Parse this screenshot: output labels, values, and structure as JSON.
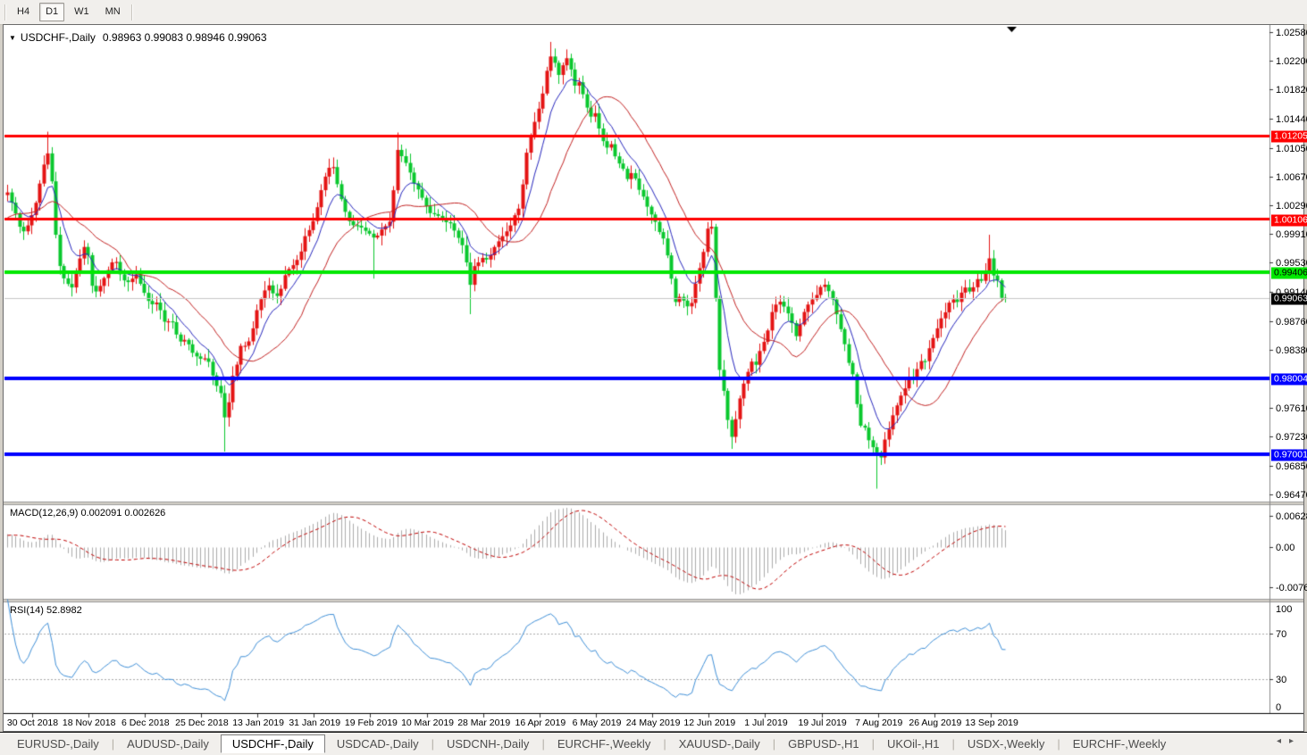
{
  "window": {
    "toolbar": {
      "timeframes": [
        {
          "label": "H4",
          "active": false
        },
        {
          "label": "D1",
          "active": true
        },
        {
          "label": "W1",
          "active": false
        },
        {
          "label": "MN",
          "active": false
        }
      ]
    },
    "title": {
      "dropdown_icon": "▼",
      "symbol": "USDCHF-,Daily",
      "ohlc": "0.98963 0.99083 0.98946 0.99063"
    },
    "tabs": {
      "items": [
        {
          "label": "EURUSD-,Daily",
          "active": false
        },
        {
          "label": "AUDUSD-,Daily",
          "active": false
        },
        {
          "label": "USDCHF-,Daily",
          "active": true
        },
        {
          "label": "USDCAD-,Daily",
          "active": false
        },
        {
          "label": "USDCNH-,Daily",
          "active": false
        },
        {
          "label": "EURCHF-,Weekly",
          "active": false
        },
        {
          "label": "XAUUSD-,Daily",
          "active": false
        },
        {
          "label": "GBPUSD-,H1",
          "active": false
        },
        {
          "label": "UKOil-,H1",
          "active": false
        },
        {
          "label": "USDX-,Weekly",
          "active": false
        },
        {
          "label": "EURCHF-,Weekly",
          "active": false
        }
      ],
      "scroll_left": "◂",
      "scroll_right": "▸"
    }
  },
  "chart_data": {
    "type": "candlestick",
    "symbol": "USDCHF-",
    "timeframe": "Daily",
    "quote": {
      "open": "0.98963",
      "high": "0.99083",
      "low": "0.98946",
      "close": "0.99063"
    },
    "colors": {
      "bull": "#E41414",
      "bear": "#0AC82E",
      "ma_fast": "#2727BE",
      "ma_slow": "#C32222",
      "macd_hist": "#ABABAB",
      "macd_signal": "#C00000",
      "rsi_line": "#4090D8",
      "current_price_line": "#C8C8C8"
    },
    "price_axis": {
      "ticks": [
        "1.02580",
        "1.02200",
        "1.01820",
        "1.01440",
        "1.01050",
        "1.00670",
        "1.00290",
        "0.99910",
        "0.99530",
        "0.99140",
        "0.98760",
        "0.98380",
        "0.97610",
        "0.97230",
        "0.96850",
        "0.96470"
      ],
      "special_labels": [
        {
          "text": "1.01205",
          "bg": "#FF0000",
          "fg": "#FFFFFF"
        },
        {
          "text": "1.00106",
          "bg": "#FF0000",
          "fg": "#FFFFFF"
        },
        {
          "text": "0.99406",
          "bg": "#00E800",
          "fg": "#000000"
        },
        {
          "text": "0.99063",
          "bg": "#000000",
          "fg": "#FFFFFF"
        },
        {
          "text": "0.98004",
          "bg": "#0000FF",
          "fg": "#FFFFFF"
        },
        {
          "text": "0.97001",
          "bg": "#0000FF",
          "fg": "#FFFFFF"
        }
      ]
    },
    "levels": [
      {
        "price": 1.01205,
        "color": "#FF0000",
        "width": 3
      },
      {
        "price": 1.00106,
        "color": "#FF0000",
        "width": 3
      },
      {
        "price": 0.99406,
        "color": "#00E800",
        "width": 4
      },
      {
        "price": 0.98004,
        "color": "#0000FF",
        "width": 4
      },
      {
        "price": 0.97001,
        "color": "#0000FF",
        "width": 4
      },
      {
        "price": 0.99063,
        "color": "#C8C8C8",
        "width": 1,
        "role": "current-price"
      }
    ],
    "x_axis": {
      "labels": [
        "30 Oct 2018",
        "18 Nov 2018",
        "6 Dec 2018",
        "25 Dec 2018",
        "13 Jan 2019",
        "31 Jan 2019",
        "19 Feb 2019",
        "10 Mar 2019",
        "28 Mar 2019",
        "16 Apr 2019",
        "6 May 2019",
        "24 May 2019",
        "12 Jun 2019",
        "1 Jul 2019",
        "19 Jul 2019",
        "7 Aug 2019",
        "26 Aug 2019",
        "13 Sep 2019"
      ]
    },
    "series": {
      "candles": 249,
      "warmup": {
        "bars": 28,
        "start": 0.9948
      },
      "anchors": [
        [
          8,
          1.0046
        ],
        [
          16,
          1.0022
        ],
        [
          24,
          0.9991
        ],
        [
          32,
          1.0005
        ],
        [
          40,
          1.0034
        ],
        [
          48,
          1.0081
        ],
        [
          53,
          1.0098
        ],
        [
          58,
          1.0057
        ],
        [
          64,
          0.9958
        ],
        [
          72,
          0.9929
        ],
        [
          80,
          0.992
        ],
        [
          88,
          0.9955
        ],
        [
          96,
          0.9982
        ],
        [
          104,
          0.991
        ],
        [
          112,
          0.9923
        ],
        [
          120,
          0.9942
        ],
        [
          128,
          0.996
        ],
        [
          136,
          0.9931
        ],
        [
          144,
          0.9927
        ],
        [
          152,
          0.9938
        ],
        [
          160,
          0.9916
        ],
        [
          168,
          0.9897
        ],
        [
          176,
          0.9901
        ],
        [
          184,
          0.9874
        ],
        [
          192,
          0.9877
        ],
        [
          200,
          0.9848
        ],
        [
          208,
          0.9852
        ],
        [
          216,
          0.9832
        ],
        [
          224,
          0.9826
        ],
        [
          232,
          0.9827
        ],
        [
          240,
          0.9795
        ],
        [
          248,
          0.9778
        ],
        [
          253,
          0.9733
        ],
        [
          258,
          0.9797
        ],
        [
          264,
          0.9814
        ],
        [
          270,
          0.9847
        ],
        [
          276,
          0.9841
        ],
        [
          282,
          0.9862
        ],
        [
          288,
          0.9894
        ],
        [
          294,
          0.9911
        ],
        [
          300,
          0.9925
        ],
        [
          306,
          0.9911
        ],
        [
          312,
          0.9908
        ],
        [
          318,
          0.9935
        ],
        [
          324,
          0.9946
        ],
        [
          330,
          0.9952
        ],
        [
          336,
          0.9964
        ],
        [
          342,
          0.9991
        ],
        [
          348,
          0.9999
        ],
        [
          354,
          1.0022
        ],
        [
          360,
          1.0052
        ],
        [
          366,
          1.0075
        ],
        [
          372,
          1.0084
        ],
        [
          378,
          1.0054
        ],
        [
          384,
          1.0028
        ],
        [
          390,
          1.0009
        ],
        [
          396,
          1.0002
        ],
        [
          402,
          1.0002
        ],
        [
          408,
          0.9996
        ],
        [
          414,
          0.9991
        ],
        [
          420,
          0.9984
        ],
        [
          426,
          0.9996
        ],
        [
          432,
          1.0002
        ],
        [
          438,
          1.001
        ],
        [
          444,
          1.0104
        ],
        [
          450,
          1.0093
        ],
        [
          456,
          1.0081
        ],
        [
          462,
          1.006
        ],
        [
          468,
          1.0049
        ],
        [
          474,
          1.0034
        ],
        [
          480,
          1.0019
        ],
        [
          486,
          1.0017
        ],
        [
          492,
          1.0014
        ],
        [
          498,
          1.0007
        ],
        [
          504,
          1.0005
        ],
        [
          510,
          0.9991
        ],
        [
          516,
          0.9979
        ],
        [
          521,
          0.9966
        ],
        [
          524,
          0.99
        ],
        [
          528,
          0.9946
        ],
        [
          534,
          0.9952
        ],
        [
          540,
          0.996
        ],
        [
          546,
          0.9956
        ],
        [
          552,
          0.9972
        ],
        [
          558,
          0.9982
        ],
        [
          564,
          0.9991
        ],
        [
          570,
          0.9999
        ],
        [
          576,
          1.0017
        ],
        [
          582,
          1.0028
        ],
        [
          588,
          1.0093
        ],
        [
          594,
          1.0122
        ],
        [
          600,
          1.0147
        ],
        [
          606,
          1.0169
        ],
        [
          612,
          1.0209
        ],
        [
          618,
          1.0233
        ],
        [
          624,
          1.0198
        ],
        [
          630,
          1.0215
        ],
        [
          636,
          1.0227
        ],
        [
          642,
          1.0186
        ],
        [
          648,
          1.0192
        ],
        [
          654,
          1.0169
        ],
        [
          660,
          1.0145
        ],
        [
          666,
          1.0151
        ],
        [
          672,
          1.0122
        ],
        [
          678,
          1.0104
        ],
        [
          684,
          1.011
        ],
        [
          690,
          1.0087
        ],
        [
          696,
          1.0081
        ],
        [
          702,
          1.0063
        ],
        [
          708,
          1.0075
        ],
        [
          714,
          1.0052
        ],
        [
          720,
          1.004
        ],
        [
          726,
          1.0022
        ],
        [
          732,
          1.0011
        ],
        [
          738,
          0.9993
        ],
        [
          744,
          0.9982
        ],
        [
          750,
          0.9941
        ],
        [
          756,
          0.99
        ],
        [
          762,
          0.9911
        ],
        [
          768,
          0.9894
        ],
        [
          774,
          0.99
        ],
        [
          780,
          0.9935
        ],
        [
          786,
          0.9958
        ],
        [
          792,
          0.9999
        ],
        [
          796,
          1.0005
        ],
        [
          800,
          0.9958
        ],
        [
          802,
          0.9841
        ],
        [
          806,
          0.9806
        ],
        [
          810,
          0.9783
        ],
        [
          814,
          0.9748
        ],
        [
          818,
          0.9719
        ],
        [
          822,
          0.9736
        ],
        [
          826,
          0.9765
        ],
        [
          830,
          0.9783
        ],
        [
          834,
          0.98
        ],
        [
          838,
          0.9812
        ],
        [
          842,
          0.9824
        ],
        [
          846,
          0.9818
        ],
        [
          850,
          0.9835
        ],
        [
          854,
          0.9847
        ],
        [
          858,
          0.9853
        ],
        [
          862,
          0.9882
        ],
        [
          866,
          0.9894
        ],
        [
          870,
          0.99
        ],
        [
          874,
          0.9902
        ],
        [
          878,
          0.9894
        ],
        [
          882,
          0.9886
        ],
        [
          886,
          0.9876
        ],
        [
          890,
          0.9853
        ],
        [
          894,
          0.9865
        ],
        [
          898,
          0.9882
        ],
        [
          902,
          0.9894
        ],
        [
          906,
          0.99
        ],
        [
          910,
          0.9906
        ],
        [
          914,
          0.9911
        ],
        [
          918,
          0.9921
        ],
        [
          922,
          0.9925
        ],
        [
          926,
          0.9917
        ],
        [
          930,
          0.9911
        ],
        [
          934,
          0.9894
        ],
        [
          938,
          0.9876
        ],
        [
          942,
          0.9859
        ],
        [
          946,
          0.9841
        ],
        [
          950,
          0.9818
        ],
        [
          954,
          0.9806
        ],
        [
          958,
          0.9771
        ],
        [
          962,
          0.9736
        ],
        [
          966,
          0.9742
        ],
        [
          970,
          0.9724
        ],
        [
          974,
          0.9713
        ],
        [
          978,
          0.9707
        ],
        [
          982,
          0.9701
        ],
        [
          986,
          0.9695
        ],
        [
          990,
          0.9719
        ],
        [
          994,
          0.973
        ],
        [
          998,
          0.9748
        ],
        [
          1002,
          0.976
        ],
        [
          1006,
          0.9771
        ],
        [
          1010,
          0.9783
        ],
        [
          1014,
          0.9789
        ],
        [
          1018,
          0.9806
        ],
        [
          1022,
          0.98
        ],
        [
          1026,
          0.9812
        ],
        [
          1030,
          0.9824
        ],
        [
          1034,
          0.9818
        ],
        [
          1038,
          0.9835
        ],
        [
          1042,
          0.9847
        ],
        [
          1046,
          0.9859
        ],
        [
          1050,
          0.987
        ],
        [
          1054,
          0.9882
        ],
        [
          1058,
          0.9888
        ],
        [
          1062,
          0.99
        ],
        [
          1066,
          0.9906
        ],
        [
          1070,
          0.9897
        ],
        [
          1074,
          0.9911
        ],
        [
          1078,
          0.9917
        ],
        [
          1082,
          0.9923
        ],
        [
          1086,
          0.9911
        ],
        [
          1090,
          0.9923
        ],
        [
          1094,
          0.9932
        ],
        [
          1098,
          0.9925
        ],
        [
          1100,
          0.9964
        ],
        [
          1104,
          0.9929
        ],
        [
          1108,
          0.9966
        ],
        [
          1112,
          0.9934
        ],
        [
          1116,
          0.9931
        ],
        [
          1120,
          0.9909
        ],
        [
          1124,
          0.9896
        ],
        [
          1128,
          0.99063
        ]
      ],
      "wick_overrides": [
        {
          "x": 53,
          "high": 1.01263
        },
        {
          "x": 253,
          "low": 0.97034
        },
        {
          "x": 420,
          "low": 0.9932
        },
        {
          "x": 444,
          "high": 1.01252
        },
        {
          "x": 524,
          "low": 0.9885
        },
        {
          "x": 618,
          "high": 1.0245
        },
        {
          "x": 796,
          "high": 1.00107
        },
        {
          "x": 818,
          "low": 0.97069
        },
        {
          "x": 922,
          "high": 0.9932
        },
        {
          "x": 982,
          "low": 0.96543
        },
        {
          "x": 1108,
          "high": 0.999
        }
      ]
    },
    "indicators": {
      "ma_fast": {
        "type": "EMA",
        "period": 8
      },
      "ma_slow": {
        "type": "SMA",
        "period": 20
      },
      "macd": {
        "label": "MACD(12,26,9)",
        "values": "0.002091 0.002626",
        "params": [
          12,
          26,
          9
        ],
        "axis": [
          "0.006286",
          "0.00",
          "-0.00762"
        ]
      },
      "rsi": {
        "label": "RSI(14)",
        "value": "52.8982",
        "period": 14,
        "axis": [
          "100",
          "70",
          "30",
          "0"
        ],
        "levels": [
          70,
          30
        ]
      }
    }
  }
}
